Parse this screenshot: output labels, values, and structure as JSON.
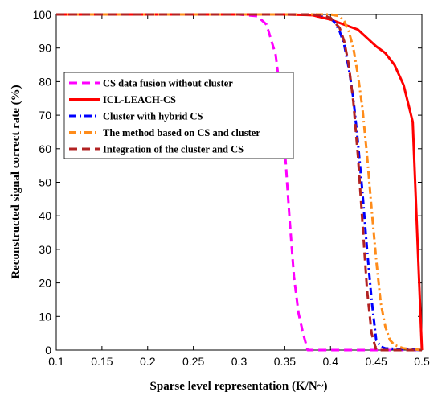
{
  "chart_data": {
    "type": "line",
    "xlabel": "Sparse level representation (K/N~)",
    "ylabel": "Reconstructed signal correct rate (%)",
    "xlim": [
      0.1,
      0.5
    ],
    "ylim": [
      0,
      100
    ],
    "xticks": [
      "0.1",
      "0.15",
      "0.2",
      "0.25",
      "0.3",
      "0.35",
      "0.4",
      "0.45",
      "0.5"
    ],
    "yticks": [
      "0",
      "10",
      "20",
      "30",
      "40",
      "50",
      "60",
      "70",
      "80",
      "90",
      "100"
    ],
    "grid": false,
    "legend_position": "center-left",
    "series": [
      {
        "name": "CS data fusion without cluster",
        "color": "#ff00ff",
        "dash": "dashed",
        "x": [
          0.1,
          0.3,
          0.32,
          0.33,
          0.34,
          0.345,
          0.35,
          0.355,
          0.36,
          0.365,
          0.37,
          0.375,
          0.4,
          0.45,
          0.5
        ],
        "y": [
          100,
          100,
          99.5,
          97,
          88,
          77,
          60,
          40,
          22,
          11,
          5,
          0,
          0,
          0,
          0
        ]
      },
      {
        "name": "ICL-LEACH-CS",
        "color": "#ff0000",
        "dash": "solid",
        "x": [
          0.1,
          0.3,
          0.35,
          0.38,
          0.4,
          0.42,
          0.43,
          0.44,
          0.45,
          0.46,
          0.47,
          0.48,
          0.49,
          0.5
        ],
        "y": [
          100,
          100,
          100,
          99.8,
          98.5,
          96.5,
          95.5,
          93,
          90.5,
          88.5,
          85,
          79,
          68,
          0
        ]
      },
      {
        "name": "Cluster with hybrid CS",
        "color": "#0000ff",
        "dash": "dashdot",
        "x": [
          0.1,
          0.38,
          0.39,
          0.4,
          0.405,
          0.41,
          0.415,
          0.42,
          0.425,
          0.43,
          0.435,
          0.44,
          0.445,
          0.45,
          0.455,
          0.46,
          0.5
        ],
        "y": [
          100,
          100,
          99.8,
          99,
          97.5,
          95,
          91,
          84,
          75,
          62,
          47,
          30,
          15,
          3,
          1,
          0.5,
          0
        ]
      },
      {
        "name": "The method based on CS and cluster",
        "color": "#ff8c1a",
        "dash": "dashdot",
        "x": [
          0.1,
          0.38,
          0.4,
          0.41,
          0.415,
          0.42,
          0.425,
          0.43,
          0.435,
          0.44,
          0.445,
          0.45,
          0.455,
          0.46,
          0.465,
          0.47,
          0.48,
          0.5
        ],
        "y": [
          100,
          100,
          100,
          99.5,
          98,
          95,
          90,
          82,
          72,
          58,
          42,
          27,
          14,
          7,
          3,
          1.5,
          0.5,
          0
        ]
      },
      {
        "name": "Integration of the cluster and CS",
        "color": "#b22222",
        "dash": "dashed",
        "x": [
          0.1,
          0.38,
          0.39,
          0.4,
          0.41,
          0.415,
          0.42,
          0.425,
          0.43,
          0.435,
          0.44,
          0.445,
          0.45,
          0.5
        ],
        "y": [
          100,
          100,
          99.8,
          99,
          96,
          92,
          85,
          74,
          58,
          38,
          18,
          5,
          0,
          0
        ]
      }
    ]
  }
}
